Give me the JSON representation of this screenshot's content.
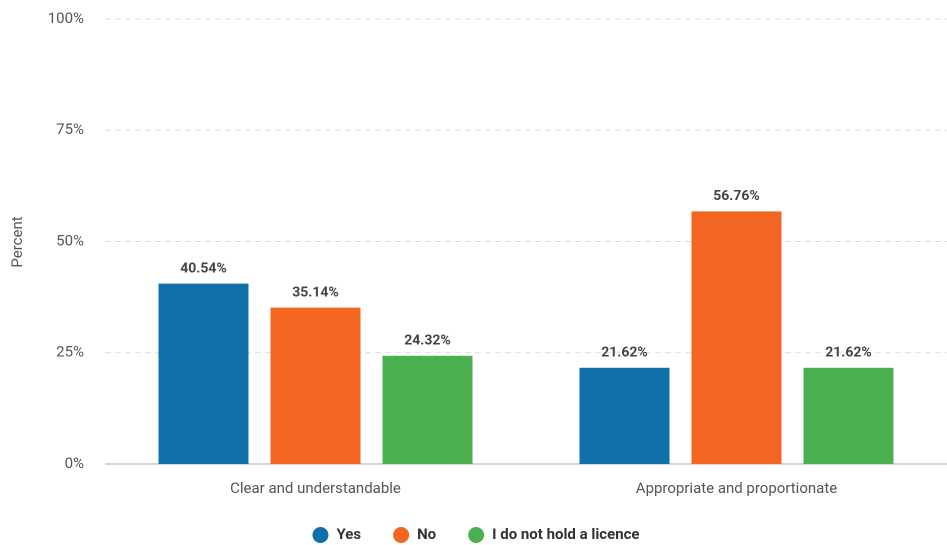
{
  "chart_data": {
    "type": "bar",
    "y_label": "Percent",
    "categories": [
      "Clear and understandable",
      "Appropriate and proportionate"
    ],
    "series": [
      {
        "name": "Yes",
        "color": "#1170aa",
        "values": [
          40.54,
          21.62
        ],
        "value_labels": [
          "40.54%",
          "21.62%"
        ]
      },
      {
        "name": "No",
        "color": "#f26522",
        "values": [
          35.14,
          56.76
        ],
        "value_labels": [
          "35.14%",
          "56.76%"
        ]
      },
      {
        "name": "I do not hold a licence",
        "color": "#4caf50",
        "values": [
          24.32,
          21.62
        ],
        "value_labels": [
          "24.32%",
          "21.62%"
        ]
      }
    ],
    "ylim": [
      0,
      100
    ],
    "yticks": [
      {
        "value": 0,
        "label": "0%"
      },
      {
        "value": 25,
        "label": "25%"
      },
      {
        "value": 50,
        "label": "50%"
      },
      {
        "value": 75,
        "label": "75%"
      },
      {
        "value": 100,
        "label": "100%"
      }
    ],
    "grid": true,
    "legend": "bottom"
  }
}
